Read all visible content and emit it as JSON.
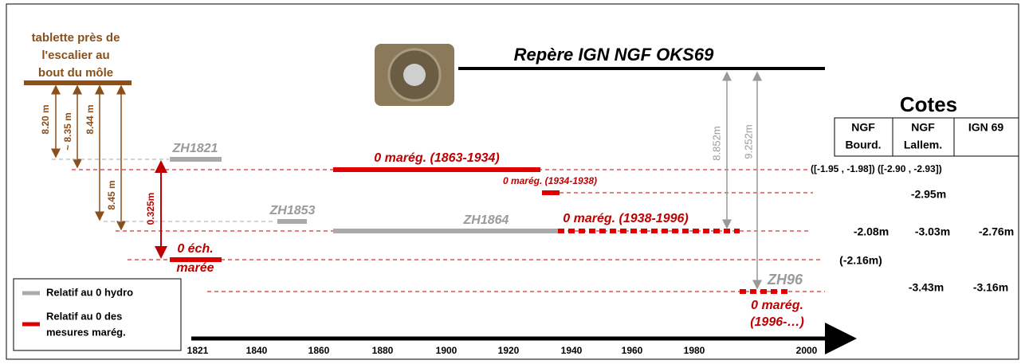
{
  "site": {
    "lines": [
      "tablette près de",
      "l'escalier au",
      "bout du môle"
    ]
  },
  "distances": [
    "8.20 m",
    "~ 8.35 m",
    "8.44 m",
    "8.45 m"
  ],
  "offset": "0.325m",
  "zh": {
    "zh1821": "ZH1821",
    "zh1853": "ZH1853",
    "zh1864": "ZH1864",
    "zh96": "ZH96"
  },
  "tide_zero": {
    "ech": [
      "0 éch.",
      "marée"
    ],
    "z1863": "0 marég. (1863-1934)",
    "z1934": "0 marég. (1934-1938)",
    "z1938": "0 marég. (1938-1996)",
    "z1996": [
      "0 marég.",
      "(1996-…)"
    ]
  },
  "benchmark": {
    "title": "Repère IGN NGF OKS69",
    "d1": "8.852m",
    "d2": "9.252m"
  },
  "cotes": {
    "title": "Cotes",
    "headers": [
      [
        "NGF",
        "Bourd."
      ],
      [
        "NGF",
        "Lallem."
      ],
      [
        "IGN 69"
      ]
    ],
    "row1": "([-1.95 , -1.98]) ([-2.90 , -2.93])",
    "row2": "-2.95m",
    "row3": [
      "-2.08m",
      "-3.03m",
      "-2.76m"
    ],
    "row4": "(-2.16m)",
    "row5": [
      "-3.43m",
      "-3.16m"
    ]
  },
  "legend": {
    "hydro": "Relatif au 0 hydro",
    "mareg": [
      "Relatif au 0 des",
      "mesures marég."
    ]
  },
  "axis": {
    "years": [
      "1821",
      "1840",
      "1860",
      "1880",
      "1900",
      "1920",
      "1940",
      "1960",
      "1980",
      "2000"
    ]
  }
}
